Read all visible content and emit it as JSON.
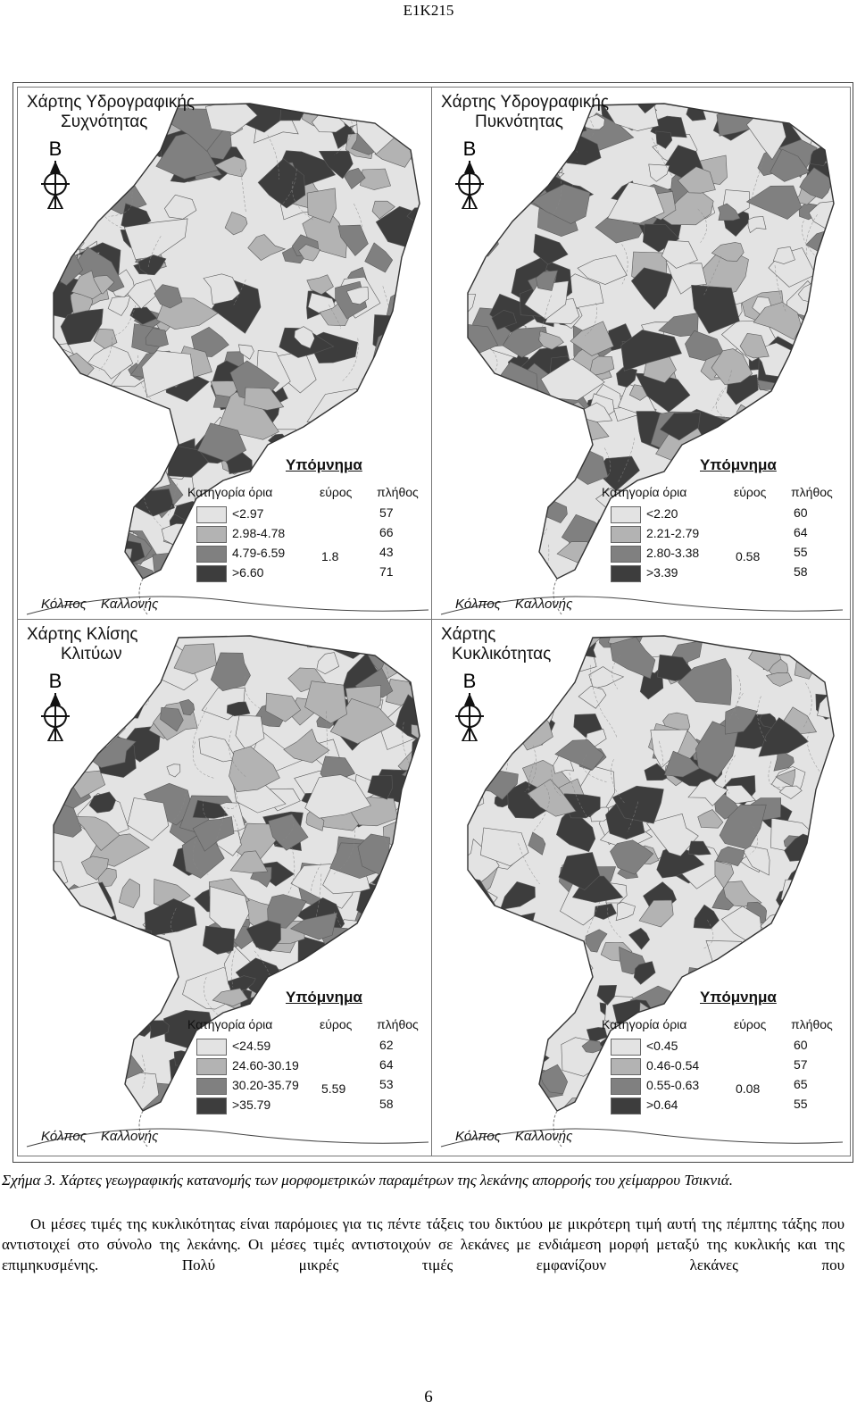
{
  "header": "E1K215",
  "panels": [
    {
      "title_lines": [
        "Χάρτης Υδρογραφικής",
        "Συχνότητας"
      ],
      "north_letter": "Β",
      "legend": {
        "title": "Υπόμνημα",
        "col_category": "Κατηγορία",
        "col_limits": "όρια",
        "col_range": "εύρος",
        "col_count": "πλήθος",
        "range": "1.8",
        "rows": [
          {
            "label": "<2.97",
            "count": "57",
            "color": "#e3e3e3"
          },
          {
            "label": "2.98-4.78",
            "count": "66",
            "color": "#b3b3b3"
          },
          {
            "label": "4.79-6.59",
            "count": "43",
            "color": "#808080"
          },
          {
            "label": ">6.60",
            "count": "71",
            "color": "#3d3d3d"
          }
        ]
      },
      "gulf": [
        "Κόλπος",
        "Καλλονής"
      ]
    },
    {
      "title_lines": [
        "Χάρτης Υδρογραφικής",
        "Πυκνότητας"
      ],
      "north_letter": "Β",
      "legend": {
        "title": "Υπόμνημα",
        "col_category": "Κατηγορία",
        "col_limits": "όρια",
        "col_range": "εύρος",
        "col_count": "πλήθος",
        "range": "0.58",
        "rows": [
          {
            "label": "<2.20",
            "count": "60",
            "color": "#e3e3e3"
          },
          {
            "label": "2.21-2.79",
            "count": "64",
            "color": "#b3b3b3"
          },
          {
            "label": "2.80-3.38",
            "count": "55",
            "color": "#808080"
          },
          {
            "label": ">3.39",
            "count": "58",
            "color": "#3d3d3d"
          }
        ]
      },
      "gulf": [
        "Κόλπος",
        "Καλλονής"
      ]
    },
    {
      "title_lines": [
        "Χάρτης Κλίσης",
        "Κλιτύων"
      ],
      "north_letter": "Β",
      "legend": {
        "title": "Υπόμνημα",
        "col_category": "Κατηγορία",
        "col_limits": "όρια",
        "col_range": "εύρος",
        "col_count": "πλήθος",
        "range": "5.59",
        "rows": [
          {
            "label": "<24.59",
            "count": "62",
            "color": "#e3e3e3"
          },
          {
            "label": "24.60-30.19",
            "count": "64",
            "color": "#b3b3b3"
          },
          {
            "label": "30.20-35.79",
            "count": "53",
            "color": "#808080"
          },
          {
            "label": ">35.79",
            "count": "58",
            "color": "#3d3d3d"
          }
        ]
      },
      "gulf": [
        "Κόλπος",
        "Καλλονής"
      ]
    },
    {
      "title_lines": [
        "Χάρτης",
        "Κυκλικότητας"
      ],
      "north_letter": "Β",
      "legend": {
        "title": "Υπόμνημα",
        "col_category": "Κατηγορία",
        "col_limits": "όρια",
        "col_range": "εύρος",
        "col_count": "πλήθος",
        "range": "0.08",
        "rows": [
          {
            "label": "<0.45",
            "count": "60",
            "color": "#e3e3e3"
          },
          {
            "label": "0.46-0.54",
            "count": "57",
            "color": "#b3b3b3"
          },
          {
            "label": "0.55-0.63",
            "count": "65",
            "color": "#808080"
          },
          {
            "label": ">0.64",
            "count": "55",
            "color": "#3d3d3d"
          }
        ]
      },
      "gulf": [
        "Κόλπος",
        "Καλλονής"
      ]
    }
  ],
  "caption": "Σχήμα 3. Χάρτες γεωγραφικής κατανομής των μορφομετρικών παραμέτρων της λεκάνης απορροής του χείμαρρου Τσικνιά.",
  "body": "Οι μέσες τιμές της κυκλικότητας είναι παρόμοιες για τις πέντε τάξεις του δικτύου με μικρότερη τιμή αυτή της πέμπτης τάξης που αντιστοιχεί στο σύνολο της λεκάνης. Οι μέσες τιμές αντιστοιχούν σε λεκάνες με ενδιάμεση μορφή μεταξύ της κυκλικής και της επιμηκυσμένης. Πολύ μικρές τιμές εμφανίζουν λεκάνες που",
  "page_number": "6"
}
